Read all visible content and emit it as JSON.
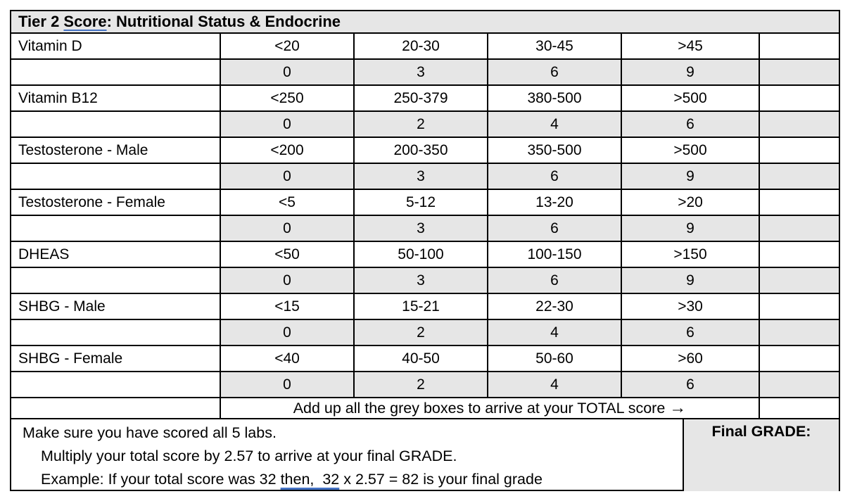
{
  "title": {
    "prefix": "Tier 2 ",
    "underlined_word": "Score",
    "suffix": ": Nutritional Status & Endocrine"
  },
  "labs": [
    {
      "label": "Vitamin D",
      "ranges": [
        "<20",
        "20-30",
        "30-45",
        ">45"
      ],
      "scores": [
        "0",
        "3",
        "6",
        "9"
      ]
    },
    {
      "label": "Vitamin B12",
      "ranges": [
        "<250",
        "250-379",
        "380-500",
        ">500"
      ],
      "scores": [
        "0",
        "2",
        "4",
        "6"
      ]
    },
    {
      "label": "Testosterone - Male",
      "ranges": [
        "<200",
        "200-350",
        "350-500",
        ">500"
      ],
      "scores": [
        "0",
        "3",
        "6",
        "9"
      ]
    },
    {
      "label": "Testosterone - Female",
      "ranges": [
        "<5",
        "5-12",
        "13-20",
        ">20"
      ],
      "scores": [
        "0",
        "3",
        "6",
        "9"
      ]
    },
    {
      "label": "DHEAS",
      "ranges": [
        "<50",
        "50-100",
        "100-150",
        ">150"
      ],
      "scores": [
        "0",
        "3",
        "6",
        "9"
      ]
    },
    {
      "label": "SHBG - Male",
      "ranges": [
        "<15",
        "15-21",
        "22-30",
        ">30"
      ],
      "scores": [
        "0",
        "2",
        "4",
        "6"
      ]
    },
    {
      "label": "SHBG - Female",
      "ranges": [
        "<40",
        "40-50",
        "50-60",
        ">60"
      ],
      "scores": [
        "0",
        "2",
        "4",
        "6"
      ]
    }
  ],
  "total_row": {
    "instruction": "Add up all the grey boxes to arrive at your TOTAL score",
    "arrow": "→"
  },
  "footer": {
    "line1": "Make sure you have scored all 5 labs.",
    "line2": "Multiply your total score by 2.57 to arrive at your final GRADE.",
    "line3_prefix": "Example: If your total score was 32 ",
    "line3_underlined": "then,  32",
    "line3_suffix": " x 2.57 = 82 is your final grade",
    "final_grade_label": "Final GRADE:"
  },
  "colors": {
    "cell_grey": "#e6e6e6",
    "border_black": "#000000",
    "proofing_underline_blue": "#4472c4"
  }
}
